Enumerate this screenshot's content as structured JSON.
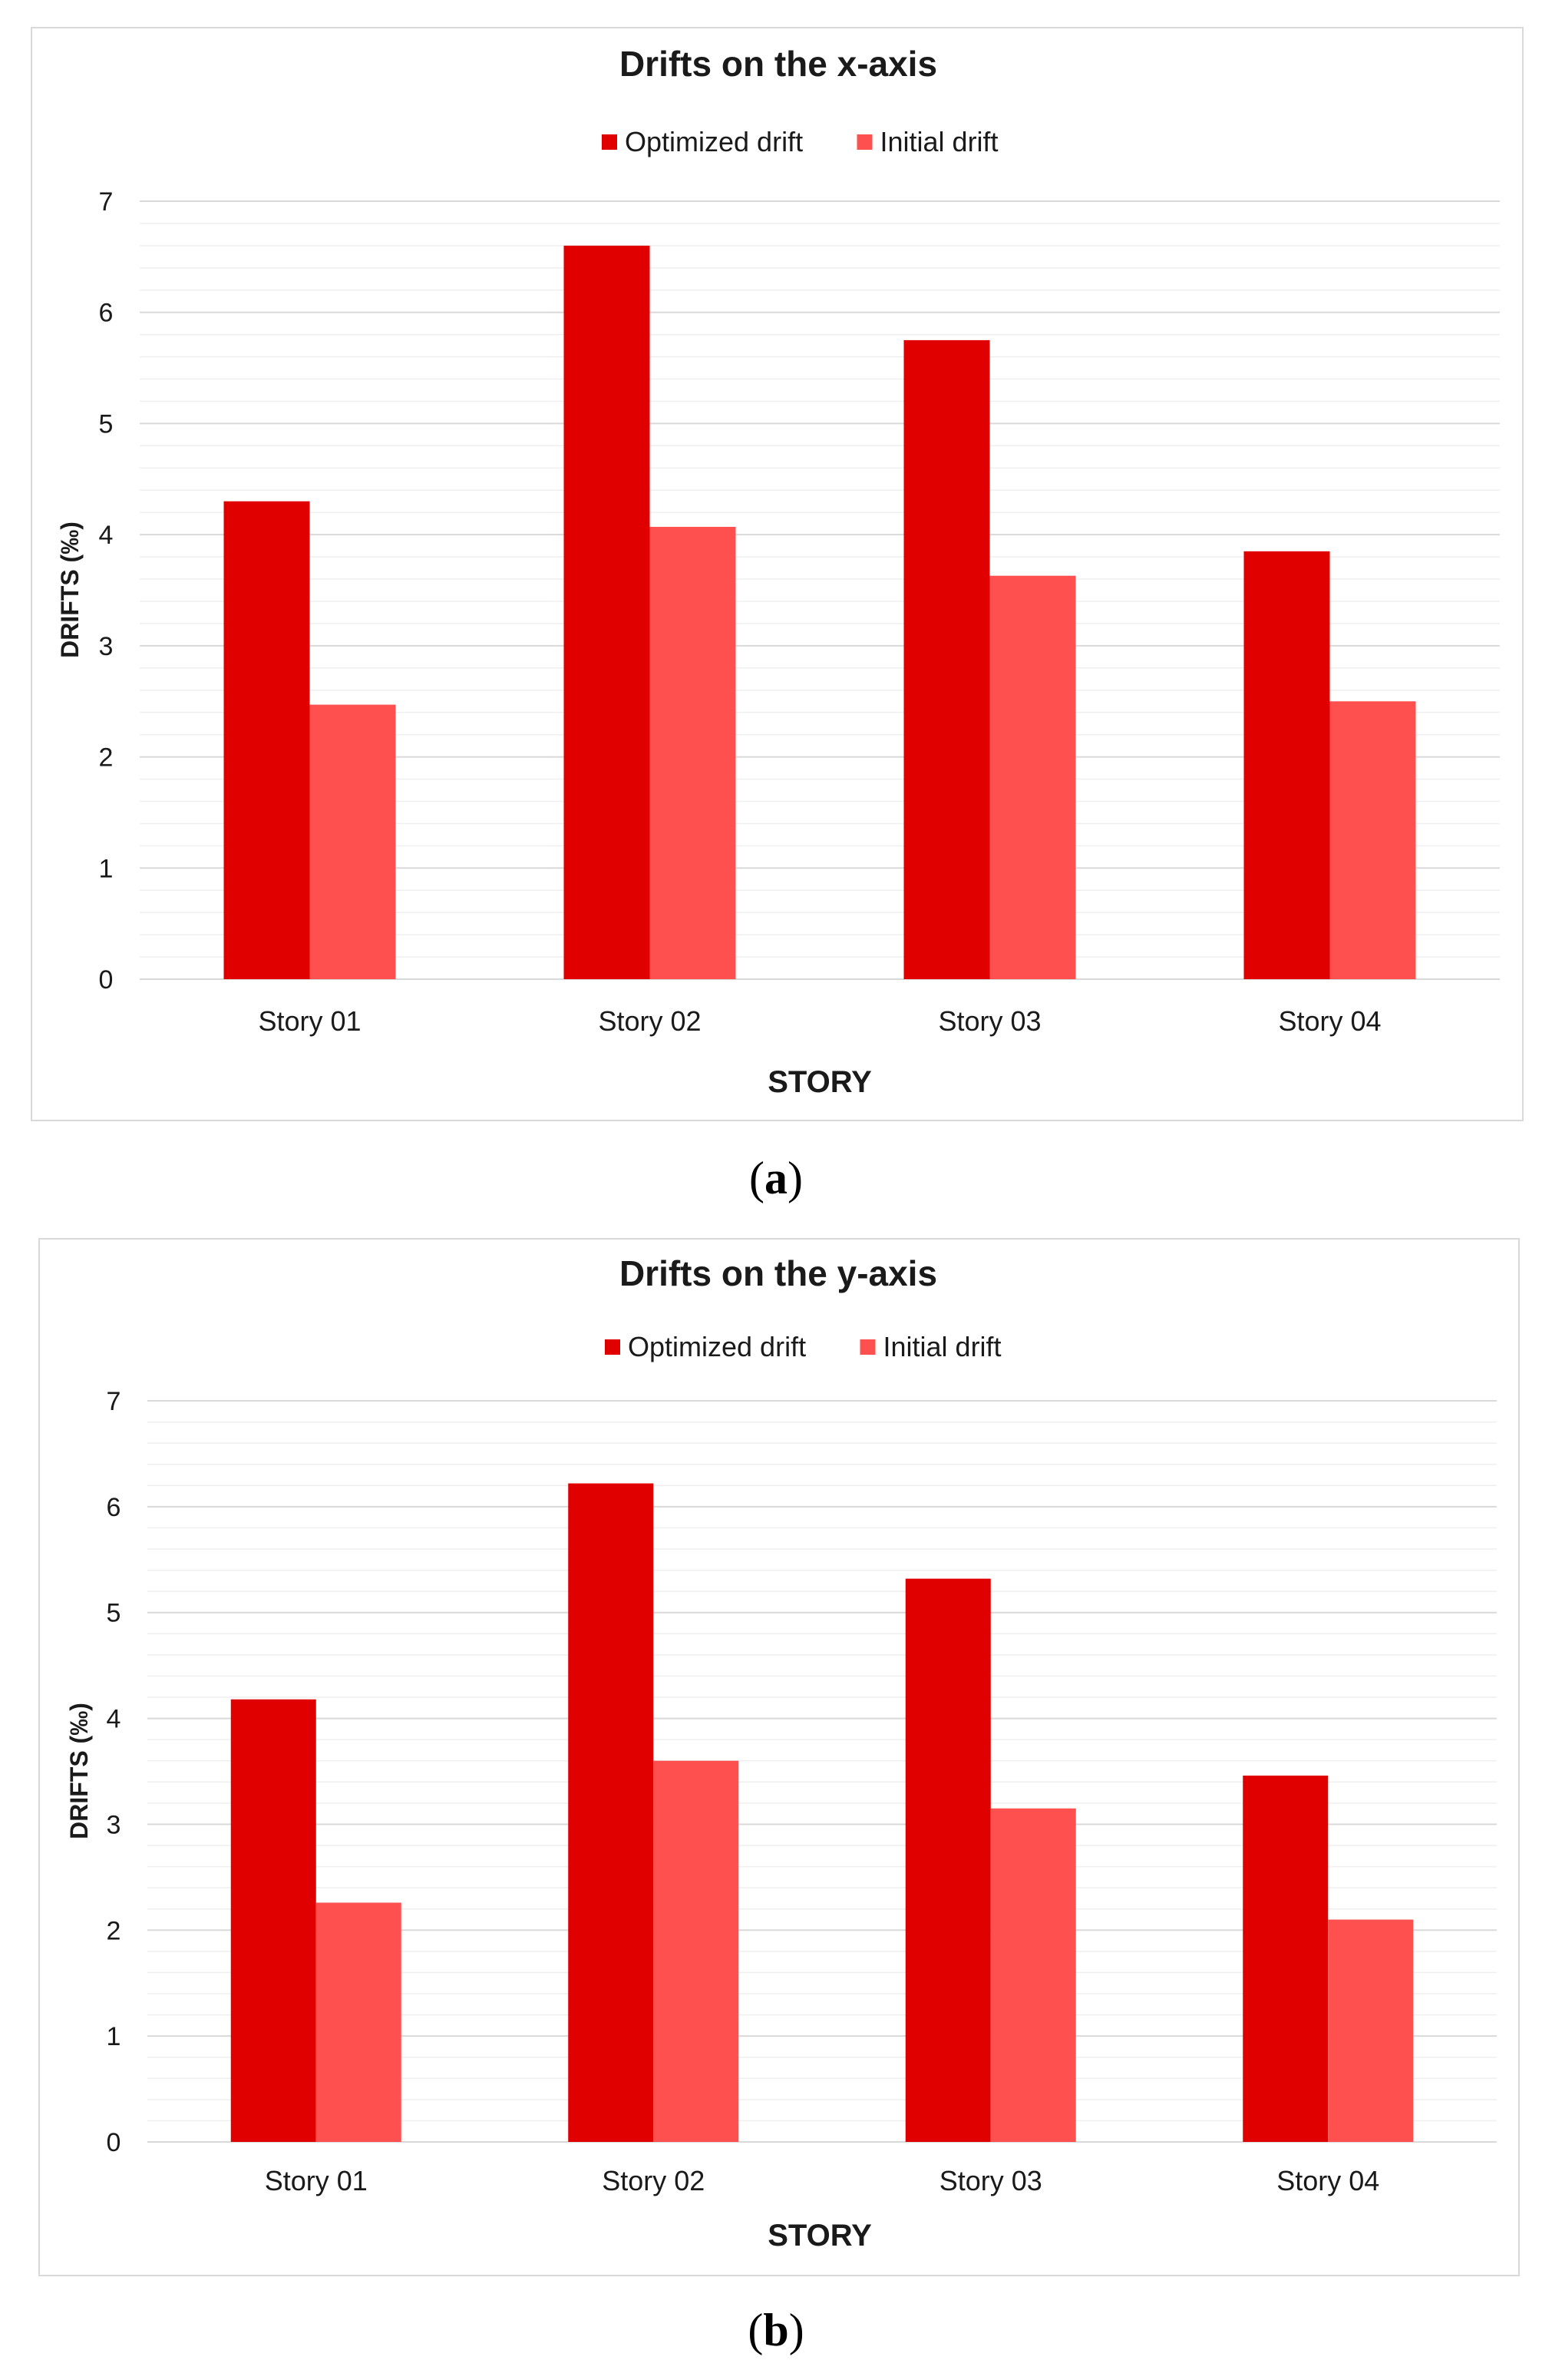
{
  "chart_data": [
    {
      "type": "bar",
      "title": "Drifts on the x-axis",
      "categories": [
        "Story 01",
        "Story 02",
        "Story 03",
        "Story 04"
      ],
      "series": [
        {
          "name": "Optimized drift",
          "color": "#e00000",
          "values": [
            4.3,
            6.6,
            5.75,
            3.85
          ]
        },
        {
          "name": "Initial drift",
          "color": "#ff5050",
          "values": [
            2.47,
            4.07,
            3.63,
            2.5
          ]
        }
      ],
      "xlabel": "STORY",
      "ylabel": "DRIFTS (‰)",
      "ylim": [
        0,
        7
      ],
      "yticks": [
        "0",
        "1",
        "2",
        "3",
        "4",
        "5",
        "6",
        "7"
      ],
      "grid": true,
      "legend": "top-center"
    },
    {
      "type": "bar",
      "title": "Drifts on the y-axis",
      "categories": [
        "Story 01",
        "Story 02",
        "Story 03",
        "Story 04"
      ],
      "series": [
        {
          "name": "Optimized drift",
          "color": "#e00000",
          "values": [
            4.18,
            6.22,
            5.32,
            3.46
          ]
        },
        {
          "name": "Initial drift",
          "color": "#ff5050",
          "values": [
            2.26,
            3.6,
            3.15,
            2.1
          ]
        }
      ],
      "xlabel": "STORY",
      "ylabel": "DRIFTS (‰)",
      "ylim": [
        0,
        7
      ],
      "yticks": [
        "0",
        "1",
        "2",
        "3",
        "4",
        "5",
        "6",
        "7"
      ],
      "grid": true,
      "legend": "top-center"
    }
  ],
  "captions": {
    "a": "a",
    "b": "b"
  },
  "colors": {
    "grid_major": "#d9d9d9",
    "grid_minor": "#efefef"
  }
}
